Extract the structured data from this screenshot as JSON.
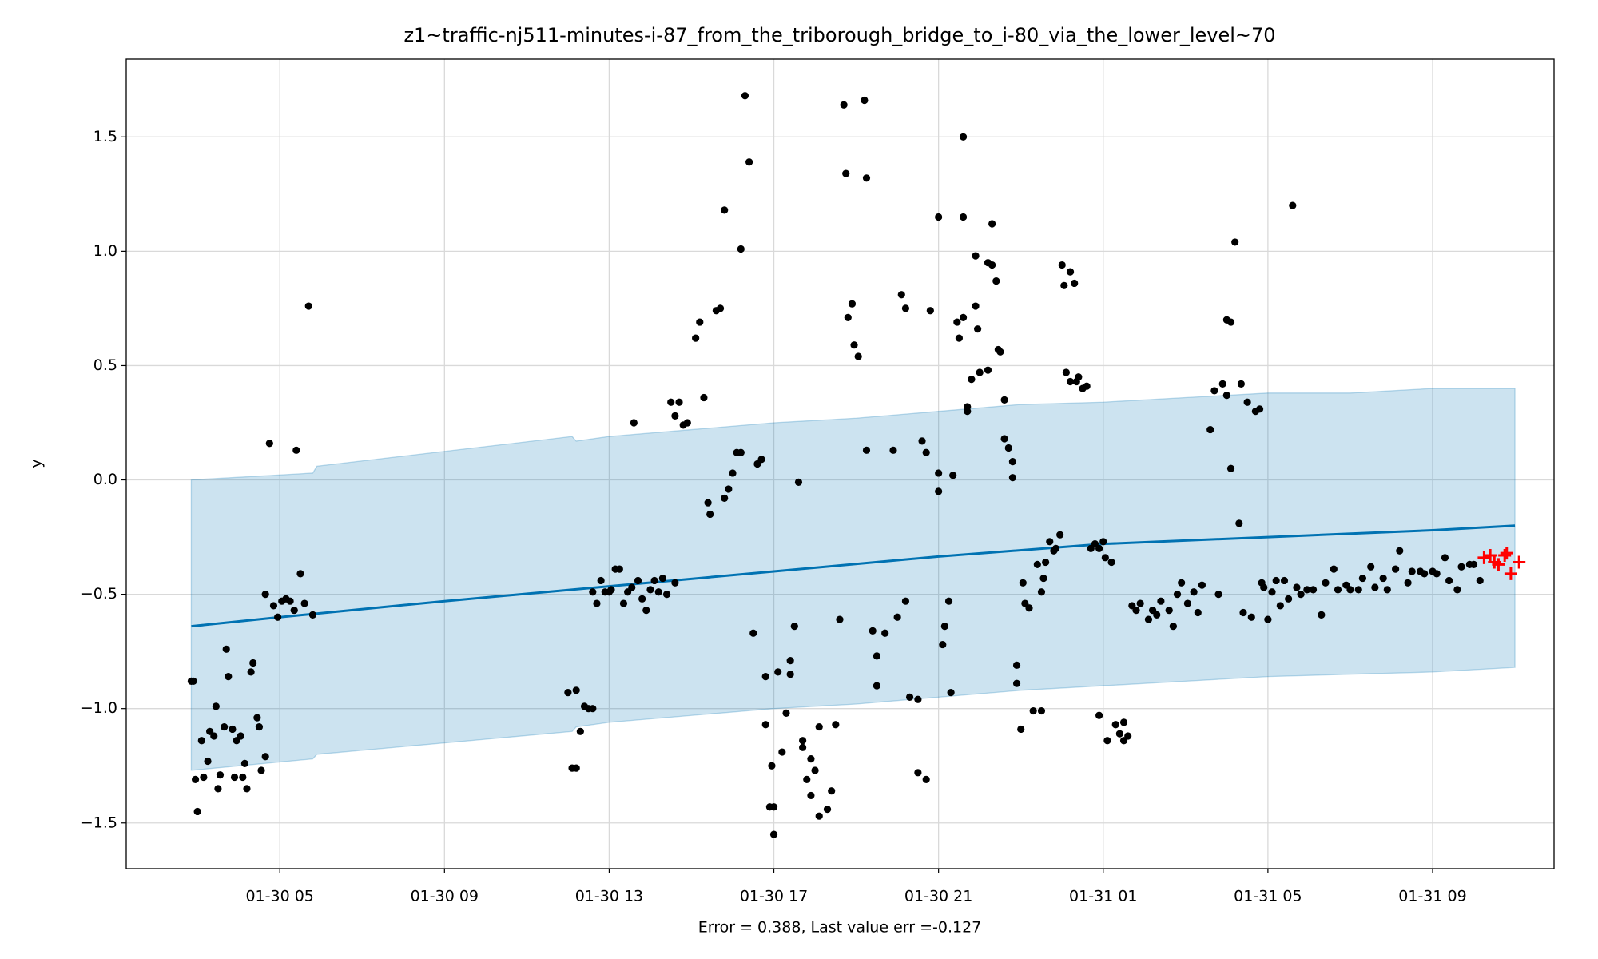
{
  "chart_data": {
    "type": "forecast",
    "title": "z1~traffic-nj511-minutes-i-87_from_the_triborough_bridge_to_i-80_via_the_lower_level~70",
    "xlabel": "Error = 0.388, Last value err =-0.127",
    "ylabel": "y",
    "xlim": [
      1.27,
      35.95
    ],
    "ylim": [
      -1.7,
      1.84
    ],
    "xticks": [
      {
        "value": 5,
        "label": "01-30 05"
      },
      {
        "value": 9,
        "label": "01-30 09"
      },
      {
        "value": 13,
        "label": "01-30 13"
      },
      {
        "value": 17,
        "label": "01-30 17"
      },
      {
        "value": 21,
        "label": "01-30 21"
      },
      {
        "value": 25,
        "label": "01-31 01"
      },
      {
        "value": 29,
        "label": "01-31 05"
      },
      {
        "value": 33,
        "label": "01-31 09"
      }
    ],
    "yticks": [
      {
        "value": -1.5,
        "label": "−1.5"
      },
      {
        "value": -1,
        "label": "−1.0"
      },
      {
        "value": -0.5,
        "label": "−0.5"
      },
      {
        "value": 0,
        "label": "0.0"
      },
      {
        "value": 0.5,
        "label": "0.5"
      },
      {
        "value": 1,
        "label": "1.0"
      },
      {
        "value": 1.5,
        "label": "1.5"
      }
    ],
    "grid": true,
    "band": {
      "color": "#0072b2",
      "x": [
        2.85,
        5.8,
        5.9,
        12.1,
        12.2,
        13,
        15,
        17,
        19,
        21,
        23,
        25,
        27,
        29,
        31,
        33,
        35
      ],
      "upper": [
        0.0,
        0.03,
        0.06,
        0.19,
        0.17,
        0.19,
        0.22,
        0.25,
        0.27,
        0.3,
        0.33,
        0.34,
        0.36,
        0.38,
        0.38,
        0.4,
        0.4
      ],
      "lower": [
        -1.27,
        -1.22,
        -1.2,
        -1.1,
        -1.08,
        -1.06,
        -1.03,
        -1.0,
        -0.98,
        -0.95,
        -0.92,
        -0.9,
        -0.88,
        -0.86,
        -0.85,
        -0.84,
        -0.82
      ]
    },
    "forecast": {
      "color": "#0072b2",
      "x": [
        2.85,
        5,
        9,
        13,
        17,
        21,
        25,
        29,
        33,
        35
      ],
      "values": [
        -0.64,
        -0.6,
        -0.53,
        -0.465,
        -0.4,
        -0.335,
        -0.28,
        -0.25,
        -0.22,
        -0.2
      ]
    },
    "observed": {
      "color": "#000000",
      "x": [
        2.85,
        2.9,
        2.95,
        3.0,
        3.1,
        3.15,
        3.25,
        3.3,
        3.4,
        3.45,
        3.5,
        3.55,
        3.65,
        3.7,
        3.75,
        3.85,
        3.9,
        3.95,
        4.05,
        4.1,
        4.15,
        4.2,
        4.3,
        4.35,
        4.45,
        4.5,
        4.55,
        4.65,
        4.65,
        4.75,
        4.85,
        4.95,
        5.05,
        5.15,
        5.25,
        5.35,
        5.4,
        5.5,
        5.6,
        5.7,
        5.8,
        12.0,
        12.1,
        12.2,
        12.2,
        12.3,
        12.4,
        12.5,
        12.6,
        12.6,
        12.7,
        12.8,
        12.9,
        13.0,
        13.05,
        13.15,
        13.25,
        13.35,
        13.45,
        13.55,
        13.6,
        13.7,
        13.8,
        13.9,
        14.0,
        14.1,
        14.2,
        14.3,
        14.4,
        14.5,
        14.6,
        14.6,
        14.7,
        14.8,
        14.9,
        15.1,
        15.2,
        15.3,
        15.4,
        15.45,
        15.6,
        15.7,
        15.8,
        15.8,
        15.9,
        16.0,
        16.1,
        16.2,
        16.2,
        16.3,
        16.4,
        16.5,
        16.6,
        16.7,
        16.8,
        16.8,
        16.9,
        16.95,
        17.0,
        17.0,
        17.1,
        17.2,
        17.3,
        17.4,
        17.4,
        17.5,
        17.6,
        17.7,
        17.7,
        17.8,
        17.9,
        17.9,
        18.0,
        18.1,
        18.1,
        18.3,
        18.4,
        18.5,
        18.6,
        18.7,
        18.75,
        18.8,
        18.9,
        18.95,
        19.05,
        19.2,
        19.25,
        19.25,
        19.4,
        19.5,
        19.5,
        19.7,
        19.9,
        20.0,
        20.1,
        20.2,
        20.2,
        20.3,
        20.5,
        20.6,
        20.7,
        20.5,
        20.7,
        20.8,
        21.0,
        21.0,
        21.0,
        21.1,
        21.15,
        21.25,
        21.35,
        21.3,
        21.45,
        21.5,
        21.6,
        21.6,
        21.6,
        21.7,
        21.7,
        21.8,
        21.9,
        21.9,
        21.95,
        22.0,
        22.2,
        22.2,
        22.3,
        22.3,
        22.4,
        22.45,
        22.5,
        22.6,
        22.6,
        22.7,
        22.8,
        22.8,
        22.9,
        22.9,
        23.0,
        23.05,
        23.1,
        23.2,
        23.3,
        23.4,
        23.5,
        23.5,
        23.55,
        23.6,
        23.7,
        23.8,
        23.85,
        23.95,
        24.0,
        24.05,
        24.1,
        24.2,
        24.2,
        24.3,
        24.35,
        24.4,
        24.5,
        24.6,
        24.7,
        24.8,
        24.9,
        24.9,
        25.0,
        25.05,
        25.1,
        25.2,
        25.3,
        25.4,
        25.5,
        25.5,
        25.6,
        25.7,
        25.8,
        25.9,
        26.1,
        26.2,
        26.3,
        26.4,
        26.6,
        26.7,
        26.8,
        26.9,
        27.05,
        27.2,
        27.3,
        27.4,
        27.6,
        27.7,
        27.8,
        27.9,
        28.0,
        28.0,
        28.1,
        28.1,
        28.2,
        28.3,
        28.35,
        28.4,
        28.5,
        28.6,
        28.7,
        28.8,
        28.85,
        28.9,
        29.0,
        29.1,
        29.2,
        29.3,
        29.4,
        29.5,
        29.6,
        29.7,
        29.8,
        29.95,
        30.1,
        30.3,
        30.4,
        30.6,
        30.7,
        30.9,
        31.0,
        31.2,
        31.3,
        31.5,
        31.6,
        31.8,
        31.9,
        32.1,
        32.2,
        32.4,
        32.5,
        32.7,
        32.8,
        33.0,
        33.1,
        33.3,
        33.4,
        33.6,
        33.7,
        33.9,
        34.0,
        34.15
      ],
      "values": [
        -0.88,
        -0.88,
        -1.31,
        -1.45,
        -1.14,
        -1.3,
        -1.23,
        -1.1,
        -1.12,
        -0.99,
        -1.35,
        -1.29,
        -1.08,
        -0.74,
        -0.86,
        -1.09,
        -1.3,
        -1.14,
        -1.12,
        -1.3,
        -1.24,
        -1.35,
        -0.84,
        -0.8,
        -1.04,
        -1.08,
        -1.27,
        -1.21,
        -0.5,
        0.16,
        -0.55,
        -0.6,
        -0.53,
        -0.52,
        -0.53,
        -0.57,
        0.13,
        -0.41,
        -0.54,
        0.76,
        -0.59,
        -0.93,
        -1.26,
        -1.26,
        -0.92,
        -1.1,
        -0.99,
        -1.0,
        -1.0,
        -0.49,
        -0.54,
        -0.44,
        -0.49,
        -0.49,
        -0.48,
        -0.39,
        -0.39,
        -0.54,
        -0.49,
        -0.47,
        0.25,
        -0.44,
        -0.52,
        -0.57,
        -0.48,
        -0.44,
        -0.49,
        -0.43,
        -0.5,
        0.34,
        -0.45,
        0.28,
        0.34,
        0.24,
        0.25,
        0.62,
        0.69,
        0.36,
        -0.1,
        -0.15,
        0.74,
        0.75,
        1.18,
        -0.08,
        -0.04,
        0.03,
        0.12,
        0.12,
        1.01,
        1.68,
        1.39,
        -0.67,
        0.07,
        0.09,
        -0.86,
        -1.07,
        -1.43,
        -1.25,
        -1.55,
        -1.43,
        -0.84,
        -1.19,
        -1.02,
        -0.79,
        -0.85,
        -0.64,
        -0.01,
        -1.14,
        -1.17,
        -1.31,
        -1.38,
        -1.22,
        -1.27,
        -1.08,
        -1.47,
        -1.44,
        -1.36,
        -1.07,
        -0.61,
        1.64,
        1.34,
        0.71,
        0.77,
        0.59,
        0.54,
        1.66,
        1.32,
        0.13,
        -0.66,
        -0.9,
        -0.77,
        -0.67,
        0.13,
        -0.6,
        0.81,
        0.75,
        -0.53,
        -0.95,
        -0.96,
        0.17,
        0.12,
        -1.28,
        -1.31,
        0.74,
        1.15,
        -0.05,
        0.03,
        -0.72,
        -0.64,
        -0.53,
        0.02,
        -0.93,
        0.69,
        0.62,
        1.15,
        0.71,
        1.5,
        0.32,
        0.3,
        0.44,
        0.98,
        0.76,
        0.66,
        0.47,
        0.48,
        0.95,
        1.12,
        0.94,
        0.87,
        0.57,
        0.56,
        0.35,
        0.18,
        0.14,
        0.08,
        0.01,
        -0.81,
        -0.89,
        -1.09,
        -0.45,
        -0.54,
        -0.56,
        -1.01,
        -0.37,
        -1.01,
        -0.49,
        -0.43,
        -0.36,
        -0.27,
        -0.31,
        -0.3,
        -0.24,
        0.94,
        0.85,
        0.47,
        0.91,
        0.43,
        0.86,
        0.43,
        0.45,
        0.4,
        0.41,
        -0.3,
        -0.28,
        -1.03,
        -0.3,
        -0.27,
        -0.34,
        -1.14,
        -0.36,
        -1.07,
        -1.11,
        -1.14,
        -1.06,
        -1.12,
        -0.55,
        -0.57,
        -0.54,
        -0.61,
        -0.57,
        -0.59,
        -0.53,
        -0.57,
        -0.64,
        -0.5,
        -0.45,
        -0.54,
        -0.49,
        -0.58,
        -0.46,
        0.22,
        0.39,
        -0.5,
        0.42,
        0.37,
        0.7,
        0.69,
        0.05,
        1.04,
        -0.19,
        0.42,
        -0.58,
        0.34,
        -0.6,
        0.3,
        0.31,
        -0.45,
        -0.47,
        -0.61,
        -0.49,
        -0.44,
        -0.55,
        -0.44,
        -0.52,
        1.2,
        -0.47,
        -0.5,
        -0.48,
        -0.48,
        -0.59,
        -0.45,
        -0.39,
        -0.48,
        -0.46,
        -0.48,
        -0.48,
        -0.43,
        -0.38,
        -0.47,
        -0.43,
        -0.48,
        -0.39,
        -0.31,
        -0.45,
        -0.4,
        -0.4,
        -0.41,
        -0.4,
        -0.41,
        -0.34,
        -0.44,
        -0.48,
        -0.38,
        -0.37,
        -0.37,
        -0.44
      ]
    },
    "future": {
      "color": "#ff0000",
      "x": [
        34.25,
        34.4,
        34.5,
        34.6,
        34.75,
        34.8,
        34.9,
        35.1
      ],
      "values": [
        -0.34,
        -0.33,
        -0.36,
        -0.37,
        -0.33,
        -0.32,
        -0.41,
        -0.36
      ]
    }
  }
}
